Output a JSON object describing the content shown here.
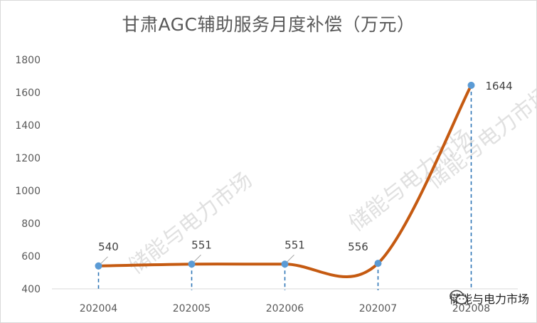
{
  "chart_data": {
    "type": "line",
    "title": "甘肃AGC辅助服务月度补偿（万元）",
    "categories": [
      "202004",
      "202005",
      "202006",
      "202007",
      "202008"
    ],
    "series": [
      {
        "values": [
          540,
          551,
          551,
          556,
          1644
        ]
      }
    ],
    "data_labels": [
      "540",
      "551",
      "551",
      "556",
      "1644"
    ],
    "y_ticks": [
      "400",
      "600",
      "800",
      "1000",
      "1200",
      "1400",
      "1600",
      "1800"
    ],
    "ylim": [
      400,
      1800
    ],
    "grid": false,
    "colors": {
      "line": "#c55a11",
      "marker": "#5b9bd5",
      "drop_line": "#2e75b6"
    }
  },
  "watermarks": [
    "储能与电力市场",
    "储能与电力市场",
    "储能与电力市场"
  ],
  "footer": {
    "account": "储能与电力市场",
    "icon": "wechat-icon"
  }
}
